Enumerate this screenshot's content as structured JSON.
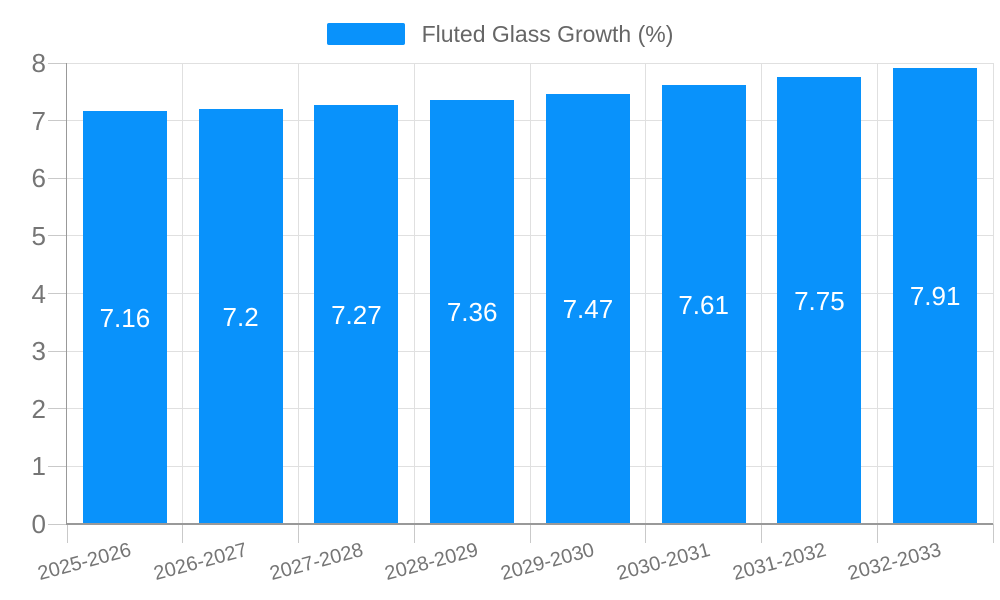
{
  "legend": {
    "label": "Fluted Glass Growth (%)"
  },
  "colors": {
    "bar": "#0992fb",
    "grid": "#e0e0e0",
    "tick": "#c9c9c9",
    "axis": "#999999",
    "axis_label_text": "#757575",
    "legend_text": "#666666",
    "value_label_text": "#ffffff",
    "background": "#ffffff"
  },
  "chart_data": {
    "type": "bar",
    "title": "Fluted Glass Growth (%)",
    "legend_entries": [
      "Fluted Glass Growth (%)"
    ],
    "legend_position": "top-center",
    "categories": [
      "2025-2026",
      "2026-2027",
      "2027-2028",
      "2028-2029",
      "2029-2030",
      "2030-2031",
      "2031-2032",
      "2032-2033"
    ],
    "values": [
      7.16,
      7.2,
      7.27,
      7.36,
      7.47,
      7.61,
      7.75,
      7.91
    ],
    "value_labels": [
      "7.16",
      "7.2",
      "7.27",
      "7.36",
      "7.47",
      "7.61",
      "7.75",
      "7.91"
    ],
    "xlabel": "",
    "ylabel": "",
    "ylim": [
      0,
      8
    ],
    "y_ticks": [
      0,
      1,
      2,
      3,
      4,
      5,
      6,
      7,
      8
    ],
    "grid": true,
    "x_label_rotation_deg": -15,
    "bar_value_position": "middle"
  }
}
